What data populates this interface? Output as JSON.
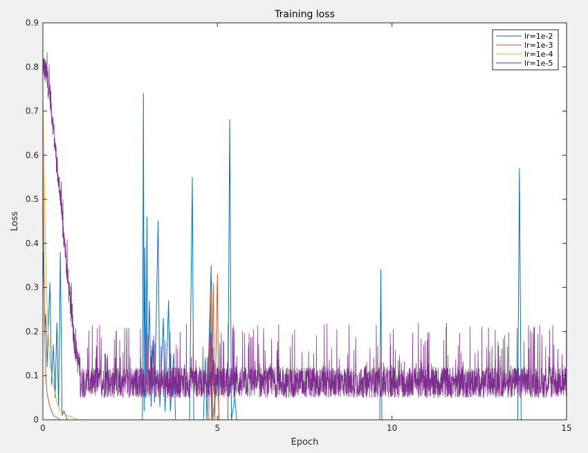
{
  "chart_data": {
    "type": "line",
    "title": "Training loss",
    "xlabel": "Epoch",
    "ylabel": "Loss",
    "xlim": [
      0,
      15
    ],
    "ylim": [
      0,
      0.9
    ],
    "xticks": [
      0,
      5,
      10,
      15
    ],
    "xtick_labels": [
      "0",
      "5",
      "10",
      "15"
    ],
    "yticks": [
      0,
      0.1,
      0.2,
      0.3,
      0.4,
      0.5,
      0.6,
      0.7,
      0.8,
      0.9
    ],
    "ytick_labels": [
      "0",
      "0.1",
      "0.2",
      "0.3",
      "0.4",
      "0.5",
      "0.6",
      "0.7",
      "0.8",
      "0.9"
    ],
    "grid": false,
    "legend_position": "top-right",
    "series": [
      {
        "name": "lr=1e-2",
        "color": "#0072bd",
        "points": [
          [
            0,
            0.3
          ],
          [
            0.02,
            0.38
          ],
          [
            0.05,
            0.2
          ],
          [
            0.08,
            0.24
          ],
          [
            0.12,
            0.12
          ],
          [
            0.15,
            0.2
          ],
          [
            0.2,
            0.31
          ],
          [
            0.25,
            0.08
          ],
          [
            0.3,
            0.17
          ],
          [
            0.35,
            0.05
          ],
          [
            0.4,
            0.22
          ],
          [
            0.45,
            0.03
          ],
          [
            0.5,
            0.38
          ],
          [
            0.55,
            0.01
          ],
          [
            0.6,
            0.02
          ],
          [
            0.7,
            0.0
          ],
          [
            1.0,
            0.0
          ],
          [
            2.85,
            0.0
          ],
          [
            2.88,
            0.74
          ],
          [
            2.9,
            0.02
          ],
          [
            2.92,
            0.39
          ],
          [
            2.95,
            0.05
          ],
          [
            2.98,
            0.46
          ],
          [
            3.0,
            0.08
          ],
          [
            3.05,
            0.27
          ],
          [
            3.1,
            0.03
          ],
          [
            3.15,
            0.18
          ],
          [
            3.2,
            0.04
          ],
          [
            3.3,
            0.45
          ],
          [
            3.35,
            0.03
          ],
          [
            3.45,
            0.23
          ],
          [
            3.5,
            0.02
          ],
          [
            3.6,
            0.27
          ],
          [
            3.65,
            0.02
          ],
          [
            3.75,
            0.15
          ],
          [
            3.8,
            0.0
          ],
          [
            4.2,
            0.0
          ],
          [
            4.28,
            0.55
          ],
          [
            4.32,
            0.0
          ],
          [
            4.6,
            0.0
          ],
          [
            4.65,
            0.14
          ],
          [
            4.7,
            0.0
          ],
          [
            4.82,
            0.35
          ],
          [
            4.86,
            0.0
          ],
          [
            5.0,
            0.09
          ],
          [
            5.05,
            0.0
          ],
          [
            5.3,
            0.0
          ],
          [
            5.35,
            0.68
          ],
          [
            5.4,
            0.0
          ],
          [
            5.5,
            0.05
          ],
          [
            5.55,
            0.0
          ],
          [
            9.65,
            0.0
          ],
          [
            9.68,
            0.34
          ],
          [
            9.71,
            0.0
          ],
          [
            13.6,
            0.0
          ],
          [
            13.65,
            0.57
          ],
          [
            13.7,
            0.0
          ],
          [
            15,
            0.0
          ]
        ]
      },
      {
        "name": "lr=1e-3",
        "color": "#d95319",
        "points": [
          [
            0,
            0.62
          ],
          [
            0.02,
            0.45
          ],
          [
            0.05,
            0.2
          ],
          [
            0.08,
            0.1
          ],
          [
            0.12,
            0.06
          ],
          [
            0.2,
            0.03
          ],
          [
            0.3,
            0.01
          ],
          [
            0.5,
            0.0
          ],
          [
            4.75,
            0.0
          ],
          [
            4.8,
            0.29
          ],
          [
            4.83,
            0.0
          ],
          [
            4.88,
            0.31
          ],
          [
            4.92,
            0.0
          ],
          [
            5.0,
            0.33
          ],
          [
            5.04,
            0.0
          ],
          [
            15,
            0.0
          ]
        ]
      },
      {
        "name": "lr=1e-4",
        "color": "#edb120",
        "points": [
          [
            0,
            0.73
          ],
          [
            0.03,
            0.6
          ],
          [
            0.06,
            0.45
          ],
          [
            0.1,
            0.3
          ],
          [
            0.15,
            0.2
          ],
          [
            0.2,
            0.13
          ],
          [
            0.3,
            0.08
          ],
          [
            0.4,
            0.04
          ],
          [
            0.5,
            0.02
          ],
          [
            0.7,
            0.01
          ],
          [
            1.0,
            0.0
          ],
          [
            15,
            0.0
          ]
        ]
      },
      {
        "name": "lr=1e-5",
        "color": "#7e2f8e",
        "points": [
          [
            0,
            0.81
          ],
          [
            0.1,
            0.78
          ],
          [
            0.2,
            0.74
          ],
          [
            0.3,
            0.66
          ],
          [
            0.4,
            0.58
          ],
          [
            0.5,
            0.5
          ],
          [
            0.6,
            0.41
          ],
          [
            0.7,
            0.33
          ],
          [
            0.8,
            0.25
          ],
          [
            0.9,
            0.18
          ],
          [
            1.0,
            0.13
          ],
          [
            1.2,
            0.1
          ],
          [
            1.5,
            0.09
          ],
          [
            2.0,
            0.085
          ],
          [
            3.0,
            0.08
          ],
          [
            5.0,
            0.08
          ],
          [
            8.0,
            0.08
          ],
          [
            10.0,
            0.08
          ],
          [
            12.0,
            0.08
          ],
          [
            15.0,
            0.08
          ]
        ],
        "noise_band": [
          0.05,
          0.22
        ]
      }
    ]
  }
}
